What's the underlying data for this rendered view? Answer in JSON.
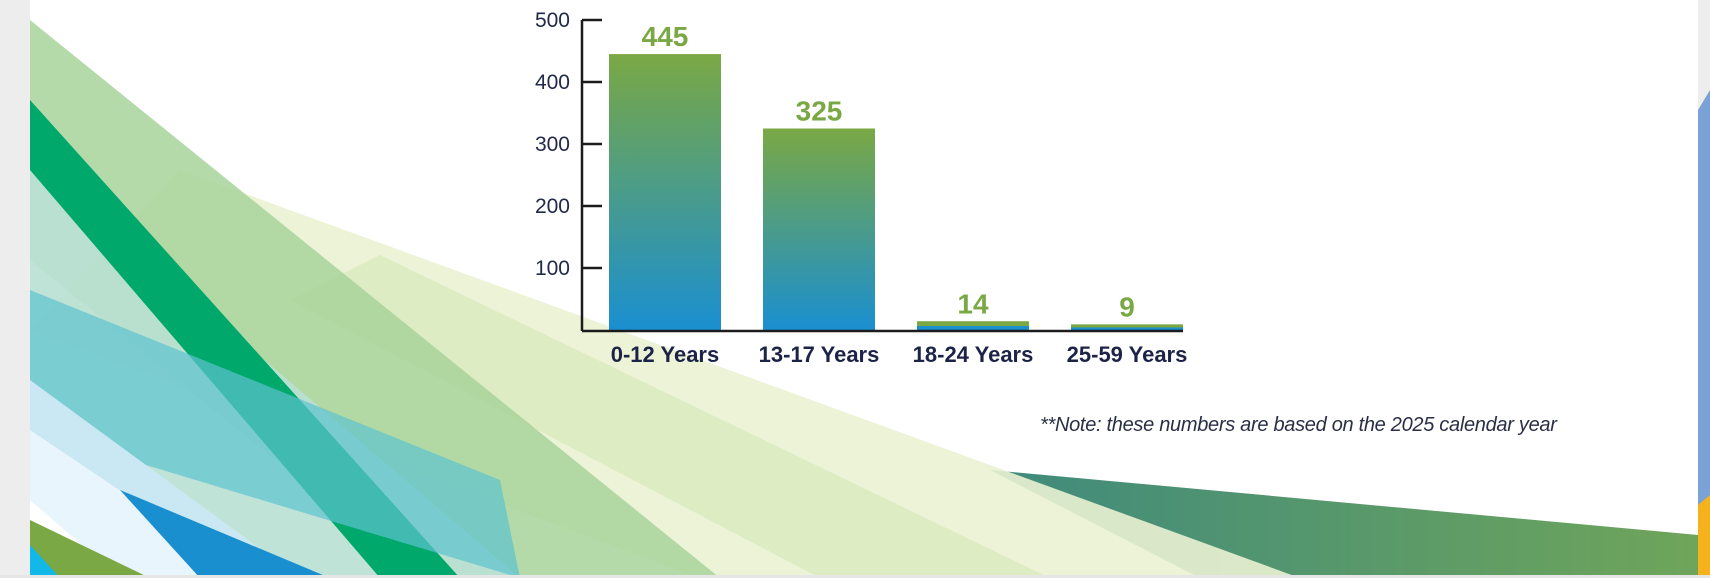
{
  "chart_data": {
    "type": "bar",
    "categories": [
      "0-12 Years",
      "13-17 Years",
      "18-24 Years",
      "25-59 Years"
    ],
    "values": [
      445,
      325,
      14,
      9
    ],
    "value_labels": [
      "445",
      "325",
      "14",
      "9"
    ],
    "yticks": [
      100,
      200,
      300,
      400,
      500
    ],
    "ylim": [
      0,
      500
    ],
    "grid": false,
    "colors": {
      "bar_top": "#7aa844",
      "bar_bottom": "#1a8fd0",
      "axis": "#1c1c1c",
      "labels": "#7aa844"
    }
  },
  "footnote": "**Note: these numbers are based on the 2025 calendar year"
}
